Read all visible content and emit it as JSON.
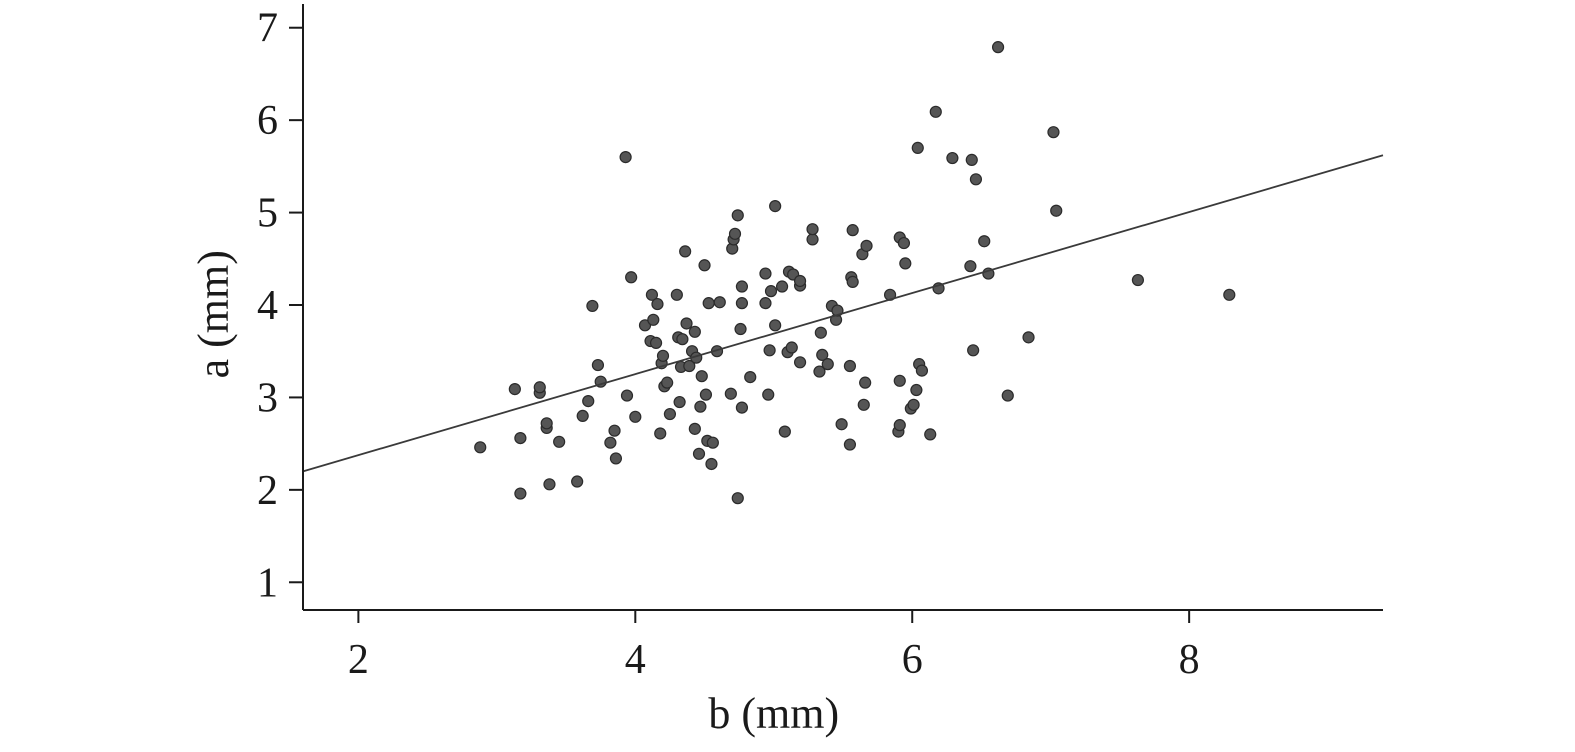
{
  "chart_data": {
    "type": "scatter",
    "title": "",
    "xlabel": "b (mm)",
    "ylabel": "a (mm)",
    "xlim": [
      1.6,
      9.4
    ],
    "ylim": [
      0.7,
      7.3
    ],
    "xticks": [
      2,
      4,
      6,
      8
    ],
    "yticks": [
      1,
      2,
      3,
      4,
      5,
      6,
      7
    ],
    "grid": false,
    "colors": {
      "points": "#555555",
      "point_edge": "#2b2b2b",
      "line": "#3a3a3a",
      "axis": "#1a1a1a"
    },
    "regression_line": {
      "x": [
        1.6,
        9.4
      ],
      "y": [
        2.2,
        5.62
      ]
    },
    "series": [
      {
        "points": [
          [
            2.88,
            2.46
          ],
          [
            3.13,
            3.09
          ],
          [
            3.17,
            2.56
          ],
          [
            3.17,
            1.96
          ],
          [
            3.31,
            3.05
          ],
          [
            3.31,
            3.11
          ],
          [
            3.36,
            2.67
          ],
          [
            3.36,
            2.72
          ],
          [
            3.38,
            2.06
          ],
          [
            3.45,
            2.52
          ],
          [
            3.58,
            2.09
          ],
          [
            3.62,
            2.8
          ],
          [
            3.66,
            2.96
          ],
          [
            3.69,
            3.99
          ],
          [
            3.73,
            3.35
          ],
          [
            3.75,
            3.17
          ],
          [
            3.82,
            2.51
          ],
          [
            3.85,
            2.64
          ],
          [
            3.86,
            2.34
          ],
          [
            3.93,
            5.6
          ],
          [
            3.94,
            3.02
          ],
          [
            3.97,
            4.3
          ],
          [
            4.0,
            2.79
          ],
          [
            4.07,
            3.78
          ],
          [
            4.11,
            3.61
          ],
          [
            4.12,
            4.11
          ],
          [
            4.13,
            3.84
          ],
          [
            4.15,
            3.59
          ],
          [
            4.16,
            4.01
          ],
          [
            4.18,
            2.61
          ],
          [
            4.19,
            3.37
          ],
          [
            4.2,
            3.45
          ],
          [
            4.21,
            3.12
          ],
          [
            4.23,
            3.16
          ],
          [
            4.25,
            2.82
          ],
          [
            4.3,
            4.11
          ],
          [
            4.31,
            3.65
          ],
          [
            4.32,
            2.95
          ],
          [
            4.33,
            3.33
          ],
          [
            4.34,
            3.63
          ],
          [
            4.36,
            4.58
          ],
          [
            4.37,
            3.8
          ],
          [
            4.39,
            3.34
          ],
          [
            4.41,
            3.5
          ],
          [
            4.43,
            3.71
          ],
          [
            4.43,
            2.66
          ],
          [
            4.44,
            3.43
          ],
          [
            4.46,
            2.39
          ],
          [
            4.47,
            2.9
          ],
          [
            4.48,
            3.23
          ],
          [
            4.5,
            4.43
          ],
          [
            4.51,
            3.03
          ],
          [
            4.52,
            2.53
          ],
          [
            4.53,
            4.02
          ],
          [
            4.55,
            2.28
          ],
          [
            4.56,
            2.51
          ],
          [
            4.59,
            3.5
          ],
          [
            4.61,
            4.03
          ],
          [
            4.69,
            3.04
          ],
          [
            4.7,
            4.61
          ],
          [
            4.71,
            4.71
          ],
          [
            4.72,
            4.77
          ],
          [
            4.74,
            1.91
          ],
          [
            4.74,
            4.97
          ],
          [
            4.76,
            3.74
          ],
          [
            4.77,
            2.89
          ],
          [
            4.77,
            4.02
          ],
          [
            4.77,
            4.2
          ],
          [
            4.83,
            3.22
          ],
          [
            4.94,
            4.02
          ],
          [
            4.94,
            4.34
          ],
          [
            4.96,
            3.03
          ],
          [
            4.97,
            3.51
          ],
          [
            4.98,
            4.15
          ],
          [
            5.01,
            3.78
          ],
          [
            5.01,
            5.07
          ],
          [
            5.06,
            4.2
          ],
          [
            5.08,
            2.63
          ],
          [
            5.1,
            3.49
          ],
          [
            5.11,
            4.36
          ],
          [
            5.13,
            3.54
          ],
          [
            5.14,
            4.33
          ],
          [
            5.19,
            3.38
          ],
          [
            5.19,
            4.21
          ],
          [
            5.19,
            4.26
          ],
          [
            5.28,
            4.71
          ],
          [
            5.28,
            4.82
          ],
          [
            5.33,
            3.28
          ],
          [
            5.34,
            3.7
          ],
          [
            5.35,
            3.46
          ],
          [
            5.39,
            3.36
          ],
          [
            5.42,
            3.99
          ],
          [
            5.45,
            3.84
          ],
          [
            5.46,
            3.94
          ],
          [
            5.49,
            2.71
          ],
          [
            5.55,
            2.49
          ],
          [
            5.55,
            3.34
          ],
          [
            5.56,
            4.3
          ],
          [
            5.57,
            4.81
          ],
          [
            5.57,
            4.25
          ],
          [
            5.64,
            4.55
          ],
          [
            5.65,
            2.92
          ],
          [
            5.66,
            3.16
          ],
          [
            5.67,
            4.64
          ],
          [
            5.84,
            4.11
          ],
          [
            5.9,
            2.63
          ],
          [
            5.91,
            2.7
          ],
          [
            5.91,
            3.18
          ],
          [
            5.91,
            4.73
          ],
          [
            5.94,
            4.67
          ],
          [
            5.95,
            4.45
          ],
          [
            5.99,
            2.88
          ],
          [
            6.01,
            2.92
          ],
          [
            6.03,
            3.08
          ],
          [
            6.04,
            5.7
          ],
          [
            6.05,
            3.36
          ],
          [
            6.07,
            3.29
          ],
          [
            6.13,
            2.6
          ],
          [
            6.17,
            6.09
          ],
          [
            6.19,
            4.18
          ],
          [
            6.29,
            5.59
          ],
          [
            6.42,
            4.42
          ],
          [
            6.43,
            5.57
          ],
          [
            6.44,
            3.51
          ],
          [
            6.46,
            5.36
          ],
          [
            6.52,
            4.69
          ],
          [
            6.55,
            4.34
          ],
          [
            6.62,
            6.79
          ],
          [
            6.69,
            3.02
          ],
          [
            6.84,
            3.65
          ],
          [
            7.02,
            5.87
          ],
          [
            7.04,
            5.02
          ],
          [
            7.63,
            4.27
          ],
          [
            8.29,
            4.11
          ]
        ]
      }
    ]
  }
}
